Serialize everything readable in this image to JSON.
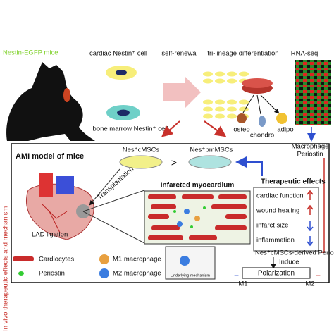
{
  "header": {
    "mouse_label": "Nestin-EGFP mice"
  },
  "cells": {
    "cardiac": "cardiac Nestin⁺ cell",
    "bone_marrow": "bone marrow Nestin⁺ cell"
  },
  "steps": {
    "self_renewal": "self-renewal",
    "differentiation": "tri-lineage differentiation",
    "rna_seq": "RNA-seq"
  },
  "lineages": [
    "osteo",
    "chondro",
    "adipo"
  ],
  "rna_result": [
    "Macrophage",
    "Periostin"
  ],
  "side_label": "In vivo therapeutic effects and mechanism",
  "panel": {
    "title": "AMI model of mice",
    "dish_left": "Nes⁺cMSCs",
    "comparison": ">",
    "dish_right": "Nes⁺bmMSCs",
    "transplantation": "Transplantation",
    "myocardium": "Infarcted myocardium",
    "ligation": "LAD ligation",
    "inset": "Underlying mechanism"
  },
  "effects": {
    "title": "Therapeutic effects",
    "items": [
      "cardiac function",
      "wound healing",
      "infarct size",
      "inflammation"
    ]
  },
  "legend": [
    "Cardiocytes",
    "Periostin",
    "M1 macrophage",
    "M2 macrophage"
  ],
  "mechanism": {
    "source": "Nes⁺cMSCs-derived Periostin",
    "induce": "Induce",
    "result": "Polarization",
    "left": "M1",
    "right": "M2",
    "minus": "−",
    "plus": "+"
  }
}
